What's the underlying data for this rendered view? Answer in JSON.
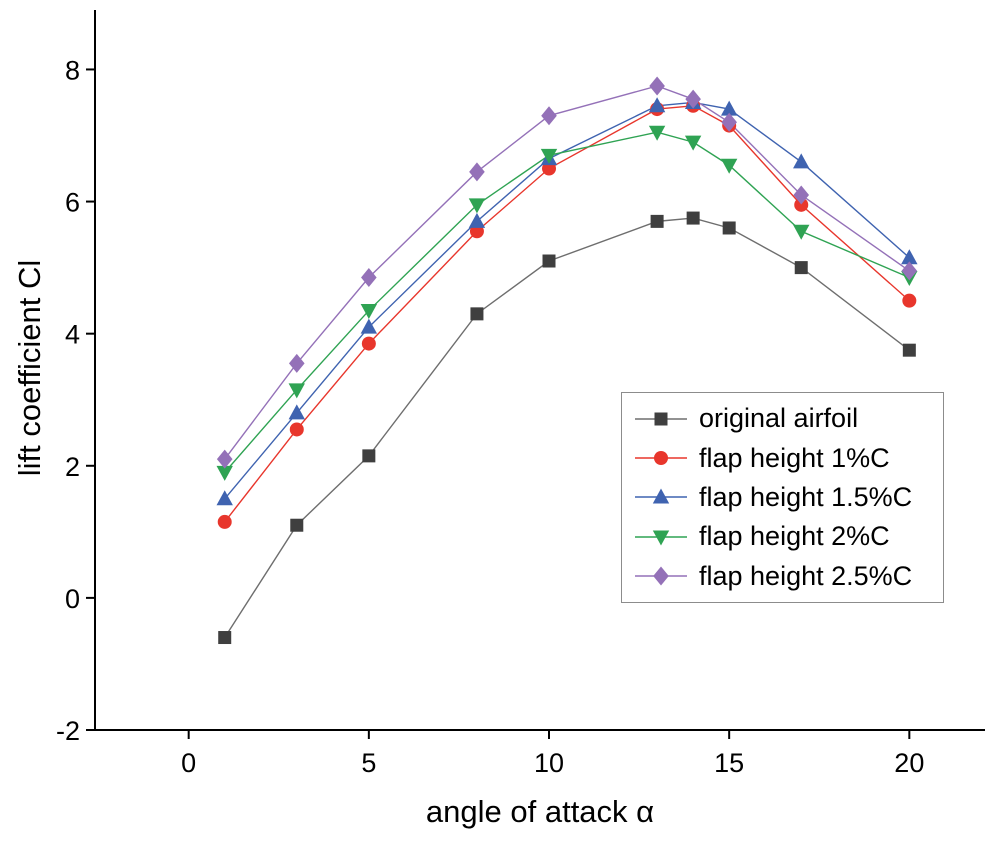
{
  "chart_data": {
    "type": "line",
    "title": "",
    "xlabel": "angle of attack α",
    "ylabel": "lift coefficient Cl",
    "x": [
      1,
      3,
      5,
      8,
      10,
      13,
      14,
      15,
      17,
      20
    ],
    "xlim": [
      -2.6,
      22.1
    ],
    "ylim": [
      -2,
      8.9
    ],
    "xticks": [
      0,
      5,
      10,
      15,
      20
    ],
    "yticks": [
      -2,
      0,
      2,
      4,
      6,
      8
    ],
    "grid": false,
    "legend_position": "center-right",
    "axis_color": "#000000",
    "series": [
      {
        "name": "original airfoil",
        "marker": "square",
        "color": "#3f3f3f",
        "line_color": "#6e6e6e",
        "values": [
          -0.6,
          1.1,
          2.15,
          4.3,
          5.1,
          5.7,
          5.75,
          5.6,
          5.0,
          3.75
        ]
      },
      {
        "name": "flap height 1%C",
        "marker": "circle",
        "color": "#e8362c",
        "line_color": "#e8362c",
        "values": [
          1.15,
          2.55,
          3.85,
          5.55,
          6.5,
          7.4,
          7.45,
          7.15,
          5.95,
          4.5
        ]
      },
      {
        "name": "flap height 1.5%C",
        "marker": "triangle-up",
        "color": "#3f63b0",
        "line_color": "#3f63b0",
        "values": [
          1.5,
          2.8,
          4.1,
          5.7,
          6.65,
          7.45,
          7.5,
          7.4,
          6.6,
          5.15
        ]
      },
      {
        "name": "flap height 2%C",
        "marker": "triangle-down",
        "color": "#2fa353",
        "line_color": "#2fa353",
        "values": [
          1.9,
          3.15,
          4.35,
          5.95,
          6.7,
          7.05,
          6.9,
          6.55,
          5.55,
          4.85
        ]
      },
      {
        "name": "flap height 2.5%C",
        "marker": "diamond",
        "color": "#9471b8",
        "line_color": "#9471b8",
        "values": [
          2.1,
          3.55,
          4.85,
          6.45,
          7.3,
          7.75,
          7.55,
          7.2,
          6.1,
          4.95
        ]
      }
    ]
  }
}
